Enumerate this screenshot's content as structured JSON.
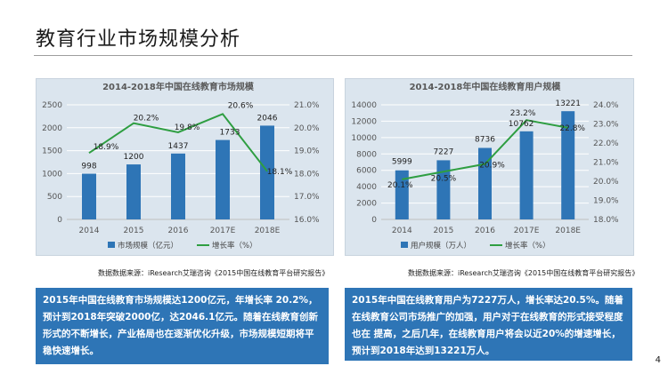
{
  "page": {
    "title": "教育行业市场规模分析",
    "page_number": "4"
  },
  "colors": {
    "bar": "#2e75b6",
    "line": "#2e9e41",
    "panel_bg": "#dbe5ee",
    "desc_bg": "#2e75b6"
  },
  "chart_data": [
    {
      "type": "bar",
      "title": "2014-2018年中国在线教育市场规模",
      "categories": [
        "2014",
        "2015",
        "2016",
        "2017E",
        "2018E"
      ],
      "series": [
        {
          "name": "市场规模（亿元）",
          "type": "bar",
          "axis": "left",
          "values": [
            998,
            1200,
            1437,
            1733,
            2046
          ]
        },
        {
          "name": "增长率（%）",
          "type": "line",
          "axis": "right",
          "values": [
            18.9,
            20.2,
            19.8,
            20.6,
            18.1
          ]
        }
      ],
      "bar_labels": [
        "998",
        "1200",
        "1437",
        "1733",
        "2046"
      ],
      "line_labels": [
        "18.9%",
        "20.2%",
        "19.8%",
        "20.6%",
        "18.1%"
      ],
      "ylim_left": [
        0,
        2500
      ],
      "yticks_left": [
        "0",
        "500",
        "1000",
        "1500",
        "2000",
        "2500"
      ],
      "ylim_right": [
        16.0,
        21.0
      ],
      "yticks_right": [
        "16.0%",
        "17.0%",
        "18.0%",
        "19.0%",
        "20.0%",
        "21.0%"
      ],
      "grid": true,
      "legend": "bottom"
    },
    {
      "type": "bar",
      "title": "2014-2018年中国在线教育用户规模",
      "categories": [
        "2014",
        "2015",
        "2016",
        "2017E",
        "2018E"
      ],
      "series": [
        {
          "name": "用户规模（万人）",
          "type": "bar",
          "axis": "left",
          "values": [
            5999,
            7227,
            8736,
            10762,
            13221
          ]
        },
        {
          "name": "增长率（%）",
          "type": "line",
          "axis": "right",
          "values": [
            20.1,
            20.5,
            20.9,
            23.2,
            22.8
          ]
        }
      ],
      "bar_labels": [
        "5999",
        "7227",
        "8736",
        "10762",
        "13221"
      ],
      "line_labels": [
        "20.1%",
        "20.5%",
        "20.9%",
        "23.2%",
        "22.8%"
      ],
      "ylim_left": [
        0,
        14000
      ],
      "yticks_left": [
        "0",
        "2000",
        "4000",
        "6000",
        "8000",
        "10000",
        "12000",
        "14000"
      ],
      "ylim_right": [
        18.0,
        24.0
      ],
      "yticks_right": [
        "18.0%",
        "19.0%",
        "20.0%",
        "21.0%",
        "22.0%",
        "23.0%",
        "24.0%"
      ],
      "grid": true,
      "legend": "bottom"
    }
  ],
  "sources": {
    "left": "数据数据来源：iResearch艾瑞咨询《2015中国在线教育平台研究报告》",
    "right": "数据数据来源：iResearch艾瑞咨询《2015中国在线教育平台研究报告》"
  },
  "descriptions": {
    "left": "2015年中国在线教育市场规模达1200亿元，年增长率 20.2%，预计到2018年突破2000亿，达2046.1亿元。随着在线教育创新形式的不断增长，产业格局也在逐渐优化升级，市场规模短期将平稳快速增长。",
    "right": "2015年中国在线教育用户为7227万人，增长率达20.5%。随着在线教育公司市场推广的加强，用户对于在线教育的形式接受程度也在 提高，之后几年，在线教育用户将会以近20%的增速增长，预计到2018年达到13221万人。"
  }
}
